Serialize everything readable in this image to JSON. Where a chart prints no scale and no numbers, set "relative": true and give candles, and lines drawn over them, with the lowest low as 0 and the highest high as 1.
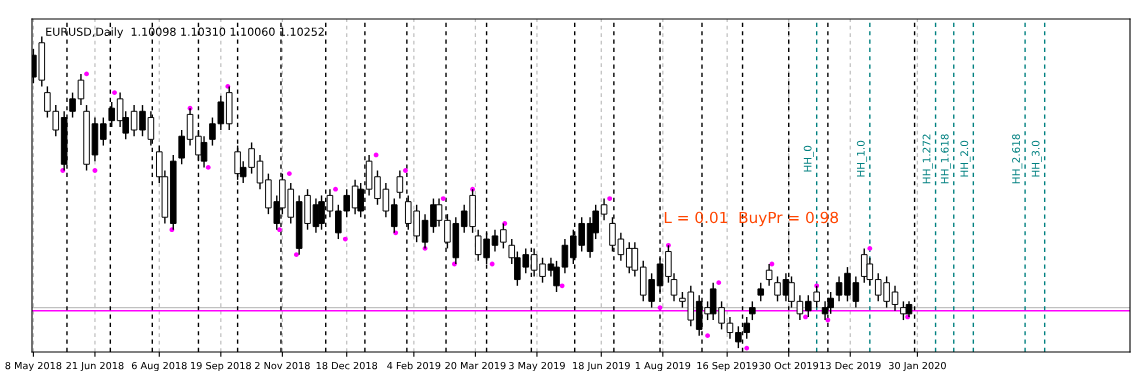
{
  "chart_data": {
    "type": "candlestick",
    "relative": true,
    "title": "EURUSD,Daily  1.10098 1.10310 1.10060 1.10252",
    "annotations": [
      "L = 0.01  BuyPr = 0.98"
    ],
    "xlim": [
      "2018-05-07",
      "2020-06-30"
    ],
    "xticks": [
      {
        "value": "2018-05-08",
        "label": "8 May 2018"
      },
      {
        "value": "2018-06-21",
        "label": "21 Jun 2018"
      },
      {
        "value": "2018-08-06",
        "label": "6 Aug 2018"
      },
      {
        "value": "2018-09-19",
        "label": "19 Sep 2018"
      },
      {
        "value": "2018-11-02",
        "label": "2 Nov 2018"
      },
      {
        "value": "2018-12-18",
        "label": "18 Dec 2018"
      },
      {
        "value": "2019-02-04",
        "label": "4 Feb 2019"
      },
      {
        "value": "2019-03-20",
        "label": "20 Mar 2019"
      },
      {
        "value": "2019-05-03",
        "label": "3 May 2019"
      },
      {
        "value": "2019-06-18",
        "label": "18 Jun 2019"
      },
      {
        "value": "2019-08-01",
        "label": "1 Aug 2019"
      },
      {
        "value": "2019-09-16",
        "label": "16 Sep 2019"
      },
      {
        "value": "2019-10-30",
        "label": "30 Oct 2019"
      },
      {
        "value": "2019-12-13",
        "label": "13 Dec 2019"
      },
      {
        "value": "2020-01-30",
        "label": "30 Jan 2020"
      }
    ],
    "tick_labels": "x",
    "grid": "x",
    "legend": false,
    "series": [
      {
        "color": "#000000",
        "x": [
          "2018-05-08",
          "2018-05-14",
          "2018-05-18",
          "2018-05-24",
          "2018-05-30",
          "2018-06-05",
          "2018-06-11",
          "2018-06-15",
          "2018-06-21",
          "2018-06-27",
          "2018-07-03",
          "2018-07-09",
          "2018-07-13",
          "2018-07-19",
          "2018-07-25",
          "2018-07-31",
          "2018-08-06",
          "2018-08-10",
          "2018-08-16",
          "2018-08-22",
          "2018-08-28",
          "2018-09-03",
          "2018-09-07",
          "2018-09-13",
          "2018-09-19",
          "2018-09-25",
          "2018-10-01",
          "2018-10-05",
          "2018-10-11",
          "2018-10-17",
          "2018-10-23",
          "2018-10-29",
          "2018-11-02",
          "2018-11-08",
          "2018-11-14",
          "2018-11-20",
          "2018-11-26",
          "2018-11-30",
          "2018-12-06",
          "2018-12-12",
          "2018-12-18",
          "2018-12-24",
          "2018-12-28",
          "2019-01-03",
          "2019-01-09",
          "2019-01-15",
          "2019-01-21",
          "2019-01-25",
          "2019-01-31",
          "2019-02-06",
          "2019-02-12",
          "2019-02-18",
          "2019-02-22",
          "2019-02-28",
          "2019-03-06",
          "2019-03-12",
          "2019-03-18",
          "2019-03-22",
          "2019-03-28",
          "2019-04-03",
          "2019-04-09",
          "2019-04-15",
          "2019-04-19",
          "2019-04-25",
          "2019-05-01",
          "2019-05-07",
          "2019-05-13",
          "2019-05-17",
          "2019-05-23",
          "2019-05-29",
          "2019-06-04",
          "2019-06-10",
          "2019-06-14",
          "2019-06-20",
          "2019-06-26",
          "2019-07-02",
          "2019-07-08",
          "2019-07-12",
          "2019-07-18",
          "2019-07-24",
          "2019-07-30",
          "2019-08-05",
          "2019-08-09",
          "2019-08-15",
          "2019-08-21",
          "2019-08-27",
          "2019-09-02",
          "2019-09-06",
          "2019-09-12",
          "2019-09-18",
          "2019-09-24",
          "2019-09-30",
          "2019-10-04",
          "2019-10-10",
          "2019-10-16",
          "2019-10-22",
          "2019-10-28",
          "2019-11-01",
          "2019-11-07",
          "2019-11-13",
          "2019-11-19",
          "2019-11-25",
          "2019-11-29",
          "2019-12-05",
          "2019-12-11",
          "2019-12-17",
          "2019-12-23",
          "2019-12-27",
          "2020-01-02",
          "2020-01-08",
          "2020-01-14",
          "2020-01-20",
          "2020-01-24"
        ],
        "ohlc": [
          [
            0.87,
            0.96,
            0.85,
            0.94
          ],
          [
            0.98,
            1.0,
            0.84,
            0.86
          ],
          [
            0.82,
            0.84,
            0.74,
            0.76
          ],
          [
            0.76,
            0.78,
            0.68,
            0.7
          ],
          [
            0.59,
            0.76,
            0.57,
            0.74
          ],
          [
            0.76,
            0.82,
            0.74,
            0.8
          ],
          [
            0.86,
            0.88,
            0.78,
            0.8
          ],
          [
            0.76,
            0.78,
            0.57,
            0.59
          ],
          [
            0.62,
            0.74,
            0.6,
            0.72
          ],
          [
            0.67,
            0.74,
            0.65,
            0.72
          ],
          [
            0.73,
            0.79,
            0.71,
            0.77
          ],
          [
            0.8,
            0.82,
            0.71,
            0.73
          ],
          [
            0.69,
            0.76,
            0.67,
            0.74
          ],
          [
            0.76,
            0.78,
            0.68,
            0.7
          ],
          [
            0.7,
            0.78,
            0.68,
            0.76
          ],
          [
            0.74,
            0.76,
            0.65,
            0.67
          ],
          [
            0.63,
            0.65,
            0.53,
            0.55
          ],
          [
            0.55,
            0.57,
            0.4,
            0.42
          ],
          [
            0.4,
            0.62,
            0.38,
            0.6
          ],
          [
            0.61,
            0.7,
            0.59,
            0.68
          ],
          [
            0.75,
            0.77,
            0.65,
            0.67
          ],
          [
            0.68,
            0.7,
            0.6,
            0.62
          ],
          [
            0.6,
            0.68,
            0.58,
            0.66
          ],
          [
            0.67,
            0.74,
            0.65,
            0.72
          ],
          [
            0.72,
            0.81,
            0.7,
            0.79
          ],
          [
            0.82,
            0.84,
            0.7,
            0.72
          ],
          [
            0.63,
            0.65,
            0.54,
            0.56
          ],
          [
            0.55,
            0.6,
            0.53,
            0.58
          ],
          [
            0.64,
            0.66,
            0.56,
            0.58
          ],
          [
            0.6,
            0.62,
            0.51,
            0.53
          ],
          [
            0.54,
            0.56,
            0.43,
            0.45
          ],
          [
            0.4,
            0.49,
            0.38,
            0.47
          ],
          [
            0.54,
            0.56,
            0.43,
            0.45
          ],
          [
            0.51,
            0.53,
            0.4,
            0.42
          ],
          [
            0.32,
            0.49,
            0.3,
            0.47
          ],
          [
            0.49,
            0.51,
            0.38,
            0.4
          ],
          [
            0.39,
            0.48,
            0.37,
            0.46
          ],
          [
            0.4,
            0.49,
            0.38,
            0.47
          ],
          [
            0.49,
            0.51,
            0.42,
            0.44
          ],
          [
            0.37,
            0.46,
            0.35,
            0.44
          ],
          [
            0.44,
            0.51,
            0.42,
            0.49
          ],
          [
            0.52,
            0.54,
            0.43,
            0.45
          ],
          [
            0.44,
            0.53,
            0.42,
            0.51
          ],
          [
            0.6,
            0.62,
            0.49,
            0.51
          ],
          [
            0.55,
            0.57,
            0.46,
            0.48
          ],
          [
            0.51,
            0.53,
            0.42,
            0.44
          ],
          [
            0.39,
            0.48,
            0.37,
            0.46
          ],
          [
            0.55,
            0.57,
            0.48,
            0.5
          ],
          [
            0.47,
            0.49,
            0.38,
            0.4
          ],
          [
            0.44,
            0.46,
            0.34,
            0.36
          ],
          [
            0.34,
            0.43,
            0.32,
            0.41
          ],
          [
            0.39,
            0.48,
            0.37,
            0.46
          ],
          [
            0.46,
            0.48,
            0.39,
            0.41
          ],
          [
            0.41,
            0.43,
            0.32,
            0.34
          ],
          [
            0.29,
            0.42,
            0.27,
            0.4
          ],
          [
            0.39,
            0.46,
            0.37,
            0.44
          ],
          [
            0.49,
            0.51,
            0.37,
            0.39
          ],
          [
            0.36,
            0.38,
            0.28,
            0.3
          ],
          [
            0.29,
            0.37,
            0.27,
            0.35
          ],
          [
            0.33,
            0.38,
            0.31,
            0.36
          ],
          [
            0.38,
            0.4,
            0.32,
            0.34
          ],
          [
            0.33,
            0.35,
            0.27,
            0.29
          ],
          [
            0.22,
            0.31,
            0.2,
            0.29
          ],
          [
            0.26,
            0.32,
            0.24,
            0.3
          ],
          [
            0.3,
            0.32,
            0.23,
            0.25
          ],
          [
            0.27,
            0.29,
            0.21,
            0.23
          ],
          [
            0.25,
            0.29,
            0.23,
            0.27
          ],
          [
            0.2,
            0.28,
            0.18,
            0.26
          ],
          [
            0.26,
            0.35,
            0.24,
            0.33
          ],
          [
            0.29,
            0.38,
            0.27,
            0.36
          ],
          [
            0.33,
            0.42,
            0.31,
            0.4
          ],
          [
            0.31,
            0.42,
            0.29,
            0.4
          ],
          [
            0.37,
            0.46,
            0.35,
            0.44
          ],
          [
            0.46,
            0.48,
            0.41,
            0.43
          ],
          [
            0.4,
            0.42,
            0.31,
            0.33
          ],
          [
            0.35,
            0.37,
            0.28,
            0.3
          ],
          [
            0.32,
            0.34,
            0.24,
            0.26
          ],
          [
            0.32,
            0.34,
            0.23,
            0.25
          ],
          [
            0.26,
            0.28,
            0.15,
            0.17
          ],
          [
            0.15,
            0.24,
            0.13,
            0.22
          ],
          [
            0.2,
            0.29,
            0.18,
            0.27
          ],
          [
            0.31,
            0.33,
            0.21,
            0.23
          ],
          [
            0.22,
            0.24,
            0.15,
            0.17
          ],
          [
            0.16,
            0.18,
            0.13,
            0.15
          ],
          [
            0.18,
            0.2,
            0.07,
            0.09
          ],
          [
            0.06,
            0.17,
            0.04,
            0.15
          ],
          [
            0.13,
            0.15,
            0.09,
            0.11
          ],
          [
            0.11,
            0.21,
            0.09,
            0.19
          ],
          [
            0.13,
            0.15,
            0.06,
            0.08
          ],
          [
            0.08,
            0.1,
            0.03,
            0.05
          ],
          [
            0.02,
            0.07,
            0.0,
            0.05
          ],
          [
            0.05,
            0.1,
            0.03,
            0.08
          ],
          [
            0.11,
            0.15,
            0.09,
            0.13
          ],
          [
            0.17,
            0.21,
            0.15,
            0.19
          ],
          [
            0.25,
            0.27,
            0.2,
            0.22
          ],
          [
            0.21,
            0.23,
            0.15,
            0.17
          ],
          [
            0.17,
            0.24,
            0.15,
            0.22
          ],
          [
            0.21,
            0.23,
            0.13,
            0.15
          ],
          [
            0.15,
            0.17,
            0.09,
            0.11
          ],
          [
            0.12,
            0.17,
            0.1,
            0.15
          ],
          [
            0.18,
            0.2,
            0.13,
            0.15
          ],
          [
            0.11,
            0.15,
            0.09,
            0.13
          ],
          [
            0.13,
            0.18,
            0.11,
            0.16
          ],
          [
            0.17,
            0.23,
            0.15,
            0.21
          ],
          [
            0.17,
            0.26,
            0.15,
            0.24
          ],
          [
            0.15,
            0.23,
            0.13,
            0.21
          ],
          [
            0.3,
            0.32,
            0.21,
            0.23
          ],
          [
            0.27,
            0.29,
            0.2,
            0.22
          ],
          [
            0.22,
            0.24,
            0.15,
            0.17
          ],
          [
            0.21,
            0.23,
            0.13,
            0.15
          ],
          [
            0.18,
            0.2,
            0.12,
            0.14
          ],
          [
            0.13,
            0.15,
            0.09,
            0.11
          ],
          [
            0.11,
            0.15,
            0.1,
            0.14
          ]
        ]
      },
      {
        "type": "scatter",
        "color": "#ff00ff",
        "marker": "circle",
        "x": [
          "2018-05-29",
          "2018-06-15",
          "2018-06-21",
          "2018-07-05",
          "2018-08-15",
          "2018-08-28",
          "2018-09-10",
          "2018-09-24",
          "2018-10-31",
          "2018-11-07",
          "2018-11-12",
          "2018-12-10",
          "2018-12-17",
          "2019-01-08",
          "2019-01-22",
          "2019-01-29",
          "2019-02-12",
          "2019-02-25",
          "2019-03-05",
          "2019-03-18",
          "2019-04-01",
          "2019-04-10",
          "2019-05-21",
          "2019-06-24",
          "2019-07-30",
          "2019-08-05",
          "2019-09-02",
          "2019-09-10",
          "2019-09-30",
          "2019-10-18",
          "2019-11-11",
          "2019-11-19",
          "2019-11-27",
          "2019-12-27",
          "2020-01-23"
        ],
        "values": [
          0.57,
          0.88,
          0.57,
          0.82,
          0.38,
          0.77,
          0.58,
          0.84,
          0.38,
          0.56,
          0.3,
          0.51,
          0.35,
          0.62,
          0.37,
          0.57,
          0.32,
          0.48,
          0.27,
          0.51,
          0.27,
          0.4,
          0.2,
          0.48,
          0.13,
          0.33,
          0.04,
          0.21,
          0.0,
          0.27,
          0.1,
          0.2,
          0.09,
          0.32,
          0.1
        ]
      }
    ],
    "ref_lines": [
      {
        "axis": "y",
        "value": 0.13,
        "color": "#c0c0c0",
        "line_style": "solid"
      },
      {
        "axis": "y",
        "value": 0.12,
        "color": "#ff00ff",
        "line_style": "solid"
      },
      {
        "axis": "x",
        "value": "2018-06-01",
        "color": "#000000",
        "line_style": "dashed"
      },
      {
        "axis": "x",
        "value": "2018-07-02",
        "color": "#000000",
        "line_style": "dashed"
      },
      {
        "axis": "x",
        "value": "2018-08-01",
        "color": "#000000",
        "line_style": "dashed"
      },
      {
        "axis": "x",
        "value": "2018-09-03",
        "color": "#000000",
        "line_style": "dashed"
      },
      {
        "axis": "x",
        "value": "2018-10-01",
        "color": "#000000",
        "line_style": "dashed"
      },
      {
        "axis": "x",
        "value": "2018-11-01",
        "color": "#000000",
        "line_style": "dashed"
      },
      {
        "axis": "x",
        "value": "2018-12-03",
        "color": "#000000",
        "line_style": "dashed"
      },
      {
        "axis": "x",
        "value": "2018-12-31",
        "color": "#000000",
        "line_style": "dashed"
      },
      {
        "axis": "x",
        "value": "2019-01-30",
        "color": "#000000",
        "line_style": "dashed"
      },
      {
        "axis": "x",
        "value": "2019-02-27",
        "color": "#000000",
        "line_style": "dashed"
      },
      {
        "axis": "x",
        "value": "2019-03-28",
        "color": "#000000",
        "line_style": "dashed"
      },
      {
        "axis": "x",
        "value": "2019-04-29",
        "color": "#000000",
        "line_style": "dashed"
      },
      {
        "axis": "x",
        "value": "2019-05-30",
        "color": "#000000",
        "line_style": "dashed"
      },
      {
        "axis": "x",
        "value": "2019-06-27",
        "color": "#000000",
        "line_style": "dashed"
      },
      {
        "axis": "x",
        "value": "2019-07-30",
        "color": "#000000",
        "line_style": "dashed"
      },
      {
        "axis": "x",
        "value": "2019-08-29",
        "color": "#000000",
        "line_style": "dashed"
      },
      {
        "axis": "x",
        "value": "2019-09-27",
        "color": "#000000",
        "line_style": "dashed"
      },
      {
        "axis": "x",
        "value": "2019-10-30",
        "color": "#000000",
        "line_style": "dashed"
      },
      {
        "axis": "x",
        "value": "2019-11-27",
        "color": "#000000",
        "line_style": "dashed"
      },
      {
        "axis": "x",
        "value": "2020-01-28",
        "color": "#000000",
        "line_style": "dashed"
      },
      {
        "axis": "x",
        "value": "2019-11-19",
        "label": "HH_0",
        "color": "#008080",
        "line_style": "dashed"
      },
      {
        "axis": "x",
        "value": "2019-12-27",
        "label": "HH_1.0",
        "color": "#008080",
        "line_style": "dashed"
      },
      {
        "axis": "x",
        "value": "2020-02-12",
        "label": "HH_1.272",
        "color": "#008080",
        "line_style": "dashed"
      },
      {
        "axis": "x",
        "value": "2020-02-25",
        "label": "HH_1.618",
        "color": "#008080",
        "line_style": "dashed"
      },
      {
        "axis": "x",
        "value": "2020-03-10",
        "label": "HH_2.0",
        "color": "#008080",
        "line_style": "dashed"
      },
      {
        "axis": "x",
        "value": "2020-04-16",
        "label": "HH_2.618",
        "color": "#008080",
        "line_style": "dashed"
      },
      {
        "axis": "x",
        "value": "2020-04-30",
        "label": "HH_3.0",
        "color": "#008080",
        "line_style": "dashed"
      }
    ]
  }
}
